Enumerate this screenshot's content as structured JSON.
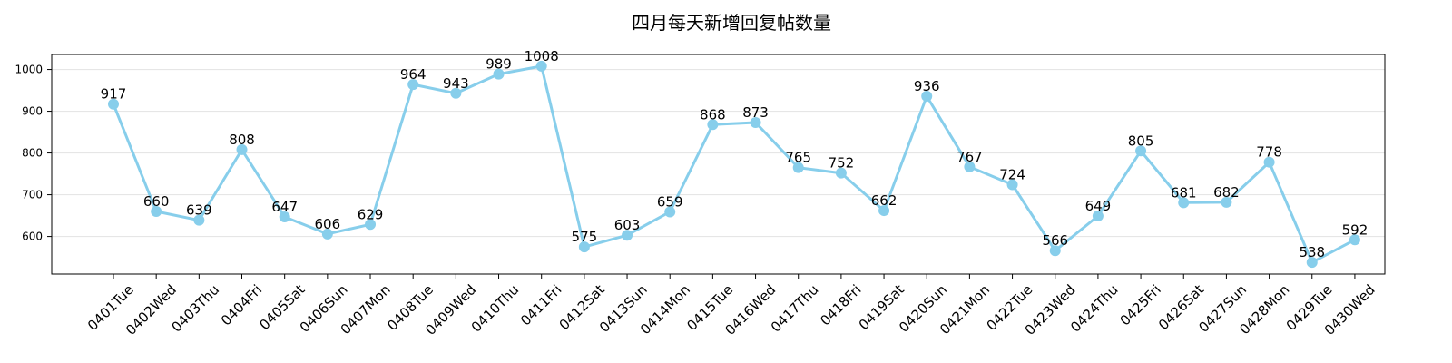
{
  "chart_data": {
    "type": "line",
    "title": "四月每天新增回复帖数量",
    "xlabel": "",
    "ylabel": "",
    "categories": [
      "0401Tue",
      "0402Wed",
      "0403Thu",
      "0404Fri",
      "0405Sat",
      "0406Sun",
      "0407Mon",
      "0408Tue",
      "0409Wed",
      "0410Thu",
      "0411Fri",
      "0412Sat",
      "0413Sun",
      "0414Mon",
      "0415Tue",
      "0416Wed",
      "0417Thu",
      "0418Fri",
      "0419Sat",
      "0420Sun",
      "0421Mon",
      "0422Tue",
      "0423Wed",
      "0424Thu",
      "0425Fri",
      "0426Sat",
      "0427Sun",
      "0428Mon",
      "0429Tue",
      "0430Wed"
    ],
    "values": [
      917,
      660,
      639,
      808,
      647,
      606,
      629,
      964,
      943,
      989,
      1008,
      575,
      603,
      659,
      868,
      873,
      765,
      752,
      662,
      936,
      767,
      724,
      566,
      649,
      805,
      681,
      682,
      778,
      538,
      592
    ],
    "yticks": [
      600,
      700,
      800,
      900,
      1000
    ],
    "ylim": [
      510,
      1036
    ],
    "grid": "horizontal",
    "color": "#87CEEB"
  }
}
